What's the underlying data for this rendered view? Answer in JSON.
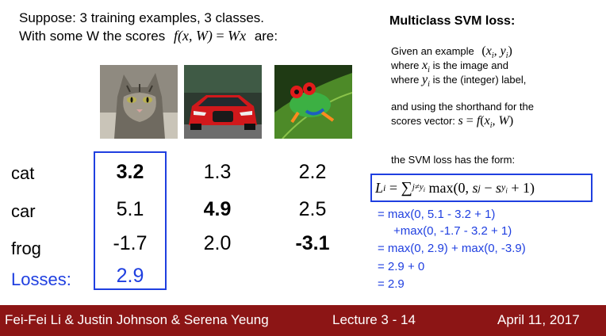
{
  "intro": {
    "line1": "Suppose: 3 training examples, 3 classes.",
    "line2_prefix": "With some W the scores",
    "line2_suffix": "are:",
    "formula": "f(x,W) = Wx"
  },
  "images": [
    "cat",
    "car",
    "frog"
  ],
  "table": {
    "rows": [
      {
        "label": "cat",
        "values": [
          "3.2",
          "1.3",
          "2.2"
        ]
      },
      {
        "label": "car",
        "values": [
          "5.1",
          "4.9",
          "2.5"
        ]
      },
      {
        "label": "frog",
        "values": [
          "-1.7",
          "2.0",
          "-3.1"
        ]
      }
    ],
    "losses_label": "Losses:",
    "losses_value": "2.9"
  },
  "right": {
    "title": "Multiclass SVM loss:",
    "given_prefix": "Given an example",
    "where1": "where",
    "where1_rest": "is the image and",
    "where2": "where",
    "where2_rest": "is the (integer) label,",
    "shorthand1": "and using the shorthand for the",
    "shorthand2": "scores vector:",
    "form_text": "the SVM loss has the form:",
    "calc": [
      "= max(0, 5.1 - 3.2 + 1)",
      "+max(0, -1.7 - 3.2 + 1)",
      "= max(0, 2.9) + max(0, -3.9)",
      "= 2.9 + 0",
      "= 2.9"
    ]
  },
  "footer": {
    "authors": "Fei-Fei Li & Justin Johnson & Serena Yeung",
    "lecture": "Lecture 3 -  14",
    "date": "April 11, 2017"
  },
  "colors": {
    "accent": "#1f3fe0",
    "footer_bg": "#8c1515"
  }
}
